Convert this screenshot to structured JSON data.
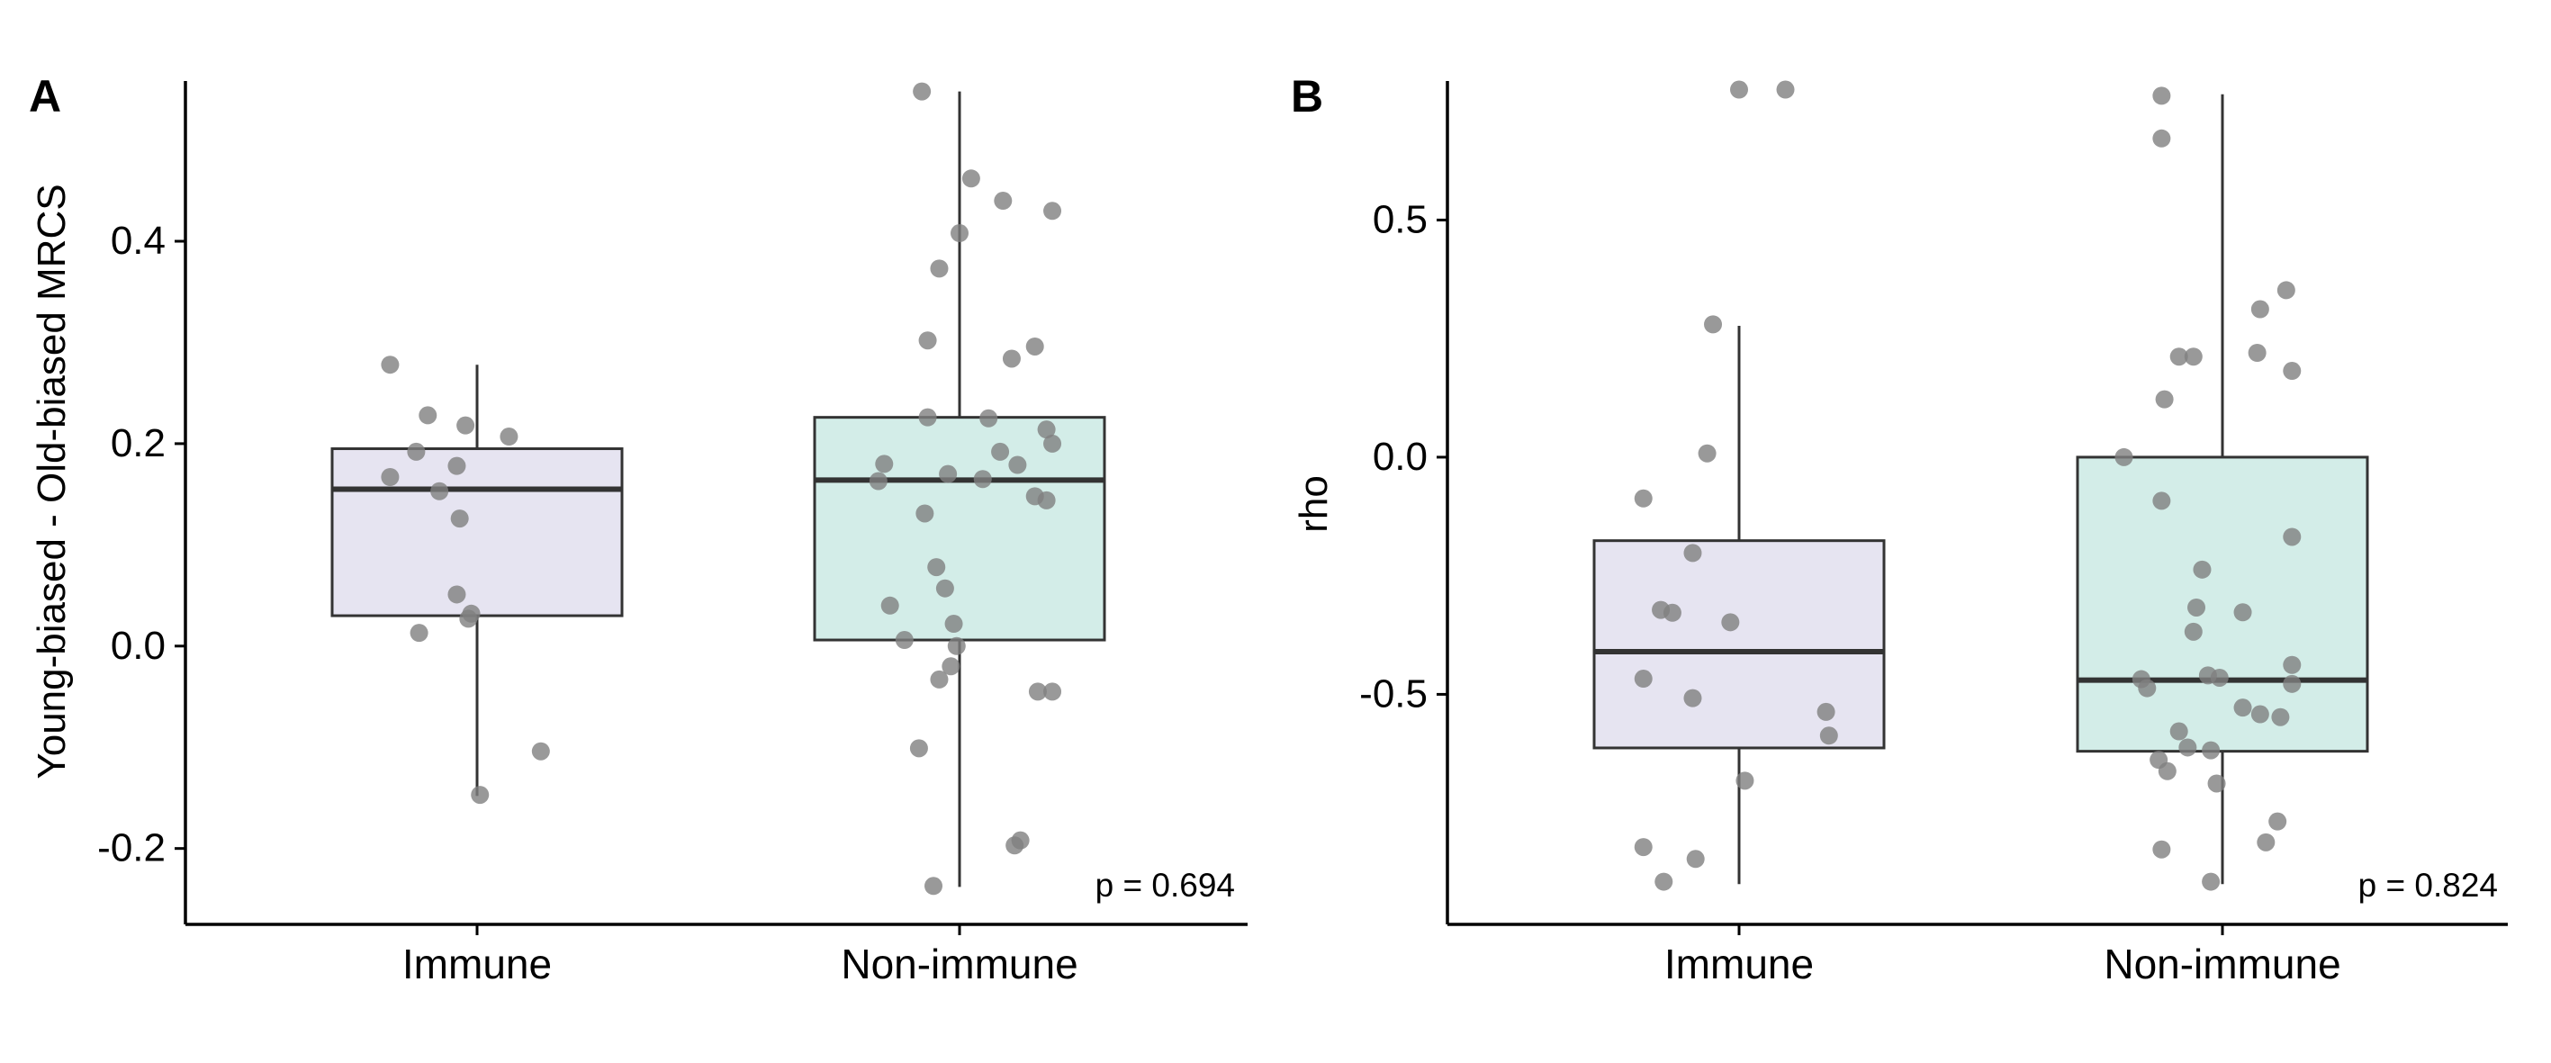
{
  "chart_data": [
    {
      "type": "box",
      "panel_label": "A",
      "ylabel": "Young-biased - Old-biased MRCS",
      "xlabel": "",
      "categories": [
        "Immune",
        "Non-immune"
      ],
      "yticks": [
        -0.2,
        0.0,
        0.2,
        0.4
      ],
      "ytick_labels": [
        "-0.2",
        "0.0",
        "0.2",
        "0.4"
      ],
      "ylim": [
        -0.275,
        0.585
      ],
      "annotation": "p = 0.694",
      "boxes": [
        {
          "category": "Immune",
          "fill": "#e6e4f1",
          "q1": 0.03,
          "median": 0.155,
          "q3": 0.195,
          "whisker_low": -0.148,
          "whisker_high": 0.278
        },
        {
          "category": "Non-immune",
          "fill": "#d3ede8",
          "q1": 0.006,
          "median": 0.164,
          "q3": 0.226,
          "whisker_low": -0.238,
          "whisker_high": 0.548
        }
      ],
      "points": [
        {
          "category": "Immune",
          "jitter": -0.3,
          "y": 0.278
        },
        {
          "category": "Immune",
          "jitter": -0.17,
          "y": 0.228
        },
        {
          "category": "Immune",
          "jitter": -0.04,
          "y": 0.218
        },
        {
          "category": "Immune",
          "jitter": 0.11,
          "y": 0.207
        },
        {
          "category": "Immune",
          "jitter": -0.21,
          "y": 0.192
        },
        {
          "category": "Immune",
          "jitter": -0.07,
          "y": 0.178
        },
        {
          "category": "Immune",
          "jitter": -0.3,
          "y": 0.167
        },
        {
          "category": "Immune",
          "jitter": -0.13,
          "y": 0.153
        },
        {
          "category": "Immune",
          "jitter": -0.06,
          "y": 0.126
        },
        {
          "category": "Immune",
          "jitter": -0.07,
          "y": 0.051
        },
        {
          "category": "Immune",
          "jitter": -0.02,
          "y": 0.032
        },
        {
          "category": "Immune",
          "jitter": -0.03,
          "y": 0.027
        },
        {
          "category": "Immune",
          "jitter": -0.2,
          "y": 0.013
        },
        {
          "category": "Immune",
          "jitter": 0.22,
          "y": -0.104
        },
        {
          "category": "Immune",
          "jitter": 0.01,
          "y": -0.147
        },
        {
          "category": "Non-immune",
          "jitter": -0.13,
          "y": 0.548
        },
        {
          "category": "Non-immune",
          "jitter": 0.04,
          "y": 0.462
        },
        {
          "category": "Non-immune",
          "jitter": 0.15,
          "y": 0.44
        },
        {
          "category": "Non-immune",
          "jitter": 0.32,
          "y": 0.43
        },
        {
          "category": "Non-immune",
          "jitter": 0.0,
          "y": 0.408
        },
        {
          "category": "Non-immune",
          "jitter": -0.07,
          "y": 0.373
        },
        {
          "category": "Non-immune",
          "jitter": -0.11,
          "y": 0.302
        },
        {
          "category": "Non-immune",
          "jitter": 0.26,
          "y": 0.296
        },
        {
          "category": "Non-immune",
          "jitter": 0.18,
          "y": 0.284
        },
        {
          "category": "Non-immune",
          "jitter": -0.11,
          "y": 0.226
        },
        {
          "category": "Non-immune",
          "jitter": 0.1,
          "y": 0.225
        },
        {
          "category": "Non-immune",
          "jitter": 0.3,
          "y": 0.214
        },
        {
          "category": "Non-immune",
          "jitter": 0.32,
          "y": 0.2
        },
        {
          "category": "Non-immune",
          "jitter": 0.14,
          "y": 0.192
        },
        {
          "category": "Non-immune",
          "jitter": -0.26,
          "y": 0.18
        },
        {
          "category": "Non-immune",
          "jitter": 0.2,
          "y": 0.179
        },
        {
          "category": "Non-immune",
          "jitter": -0.04,
          "y": 0.17
        },
        {
          "category": "Non-immune",
          "jitter": 0.08,
          "y": 0.165
        },
        {
          "category": "Non-immune",
          "jitter": -0.28,
          "y": 0.163
        },
        {
          "category": "Non-immune",
          "jitter": 0.26,
          "y": 0.148
        },
        {
          "category": "Non-immune",
          "jitter": 0.3,
          "y": 0.144
        },
        {
          "category": "Non-immune",
          "jitter": -0.12,
          "y": 0.131
        },
        {
          "category": "Non-immune",
          "jitter": -0.08,
          "y": 0.078
        },
        {
          "category": "Non-immune",
          "jitter": -0.05,
          "y": 0.057
        },
        {
          "category": "Non-immune",
          "jitter": -0.24,
          "y": 0.04
        },
        {
          "category": "Non-immune",
          "jitter": -0.02,
          "y": 0.022
        },
        {
          "category": "Non-immune",
          "jitter": -0.19,
          "y": 0.006
        },
        {
          "category": "Non-immune",
          "jitter": -0.01,
          "y": 0.0
        },
        {
          "category": "Non-immune",
          "jitter": -0.03,
          "y": -0.02
        },
        {
          "category": "Non-immune",
          "jitter": -0.07,
          "y": -0.033
        },
        {
          "category": "Non-immune",
          "jitter": 0.27,
          "y": -0.045
        },
        {
          "category": "Non-immune",
          "jitter": 0.32,
          "y": -0.045
        },
        {
          "category": "Non-immune",
          "jitter": -0.14,
          "y": -0.101
        },
        {
          "category": "Non-immune",
          "jitter": 0.21,
          "y": -0.192
        },
        {
          "category": "Non-immune",
          "jitter": 0.19,
          "y": -0.197
        },
        {
          "category": "Non-immune",
          "jitter": -0.09,
          "y": -0.237
        }
      ]
    },
    {
      "type": "box",
      "panel_label": "B",
      "ylabel": "rho",
      "xlabel": "",
      "categories": [
        "Immune",
        "Non-immune"
      ],
      "yticks": [
        -0.5,
        0.0,
        0.5
      ],
      "ytick_labels": [
        "-0.5",
        "0.0",
        "0.5"
      ],
      "ylim": [
        -0.985,
        0.85
      ],
      "annotation": "p = 0.824",
      "boxes": [
        {
          "category": "Immune",
          "fill": "#e6e4f1",
          "q1": -0.613,
          "median": -0.41,
          "q3": -0.176,
          "whisker_low": -0.9,
          "whisker_high": 0.277
        },
        {
          "category": "Non-immune",
          "fill": "#d3ede8",
          "q1": -0.62,
          "median": -0.47,
          "q3": 0.0,
          "whisker_low": -0.9,
          "whisker_high": 0.765
        }
      ],
      "points": [
        {
          "category": "Immune",
          "jitter": 0.0,
          "y": 0.775
        },
        {
          "category": "Immune",
          "jitter": 0.16,
          "y": 0.775
        },
        {
          "category": "Immune",
          "jitter": -0.09,
          "y": 0.28
        },
        {
          "category": "Immune",
          "jitter": -0.11,
          "y": 0.008
        },
        {
          "category": "Immune",
          "jitter": -0.33,
          "y": -0.087
        },
        {
          "category": "Immune",
          "jitter": -0.16,
          "y": -0.202
        },
        {
          "category": "Immune",
          "jitter": -0.27,
          "y": -0.322
        },
        {
          "category": "Immune",
          "jitter": -0.23,
          "y": -0.328
        },
        {
          "category": "Immune",
          "jitter": -0.03,
          "y": -0.348
        },
        {
          "category": "Immune",
          "jitter": -0.33,
          "y": -0.467
        },
        {
          "category": "Immune",
          "jitter": -0.16,
          "y": -0.508
        },
        {
          "category": "Immune",
          "jitter": 0.3,
          "y": -0.537
        },
        {
          "category": "Immune",
          "jitter": 0.31,
          "y": -0.587
        },
        {
          "category": "Immune",
          "jitter": 0.02,
          "y": -0.682
        },
        {
          "category": "Immune",
          "jitter": -0.33,
          "y": -0.822
        },
        {
          "category": "Immune",
          "jitter": -0.15,
          "y": -0.847
        },
        {
          "category": "Immune",
          "jitter": -0.26,
          "y": -0.895
        },
        {
          "category": "Non-immune",
          "jitter": -0.21,
          "y": 0.762
        },
        {
          "category": "Non-immune",
          "jitter": -0.21,
          "y": 0.672
        },
        {
          "category": "Non-immune",
          "jitter": 0.22,
          "y": 0.352
        },
        {
          "category": "Non-immune",
          "jitter": 0.13,
          "y": 0.312
        },
        {
          "category": "Non-immune",
          "jitter": 0.12,
          "y": 0.22
        },
        {
          "category": "Non-immune",
          "jitter": -0.15,
          "y": 0.212
        },
        {
          "category": "Non-immune",
          "jitter": -0.1,
          "y": 0.212
        },
        {
          "category": "Non-immune",
          "jitter": 0.24,
          "y": 0.182
        },
        {
          "category": "Non-immune",
          "jitter": -0.2,
          "y": 0.122
        },
        {
          "category": "Non-immune",
          "jitter": -0.34,
          "y": 0.0
        },
        {
          "category": "Non-immune",
          "jitter": -0.21,
          "y": -0.092
        },
        {
          "category": "Non-immune",
          "jitter": 0.24,
          "y": -0.168
        },
        {
          "category": "Non-immune",
          "jitter": -0.07,
          "y": -0.237
        },
        {
          "category": "Non-immune",
          "jitter": -0.09,
          "y": -0.317
        },
        {
          "category": "Non-immune",
          "jitter": 0.07,
          "y": -0.327
        },
        {
          "category": "Non-immune",
          "jitter": -0.1,
          "y": -0.368
        },
        {
          "category": "Non-immune",
          "jitter": 0.24,
          "y": -0.438
        },
        {
          "category": "Non-immune",
          "jitter": -0.28,
          "y": -0.468
        },
        {
          "category": "Non-immune",
          "jitter": -0.05,
          "y": -0.46
        },
        {
          "category": "Non-immune",
          "jitter": -0.01,
          "y": -0.465
        },
        {
          "category": "Non-immune",
          "jitter": -0.26,
          "y": -0.487
        },
        {
          "category": "Non-immune",
          "jitter": 0.24,
          "y": -0.478
        },
        {
          "category": "Non-immune",
          "jitter": 0.07,
          "y": -0.528
        },
        {
          "category": "Non-immune",
          "jitter": 0.13,
          "y": -0.542
        },
        {
          "category": "Non-immune",
          "jitter": 0.2,
          "y": -0.548
        },
        {
          "category": "Non-immune",
          "jitter": -0.15,
          "y": -0.578
        },
        {
          "category": "Non-immune",
          "jitter": -0.12,
          "y": -0.612
        },
        {
          "category": "Non-immune",
          "jitter": -0.04,
          "y": -0.618
        },
        {
          "category": "Non-immune",
          "jitter": -0.22,
          "y": -0.638
        },
        {
          "category": "Non-immune",
          "jitter": -0.19,
          "y": -0.662
        },
        {
          "category": "Non-immune",
          "jitter": -0.02,
          "y": -0.688
        },
        {
          "category": "Non-immune",
          "jitter": 0.19,
          "y": -0.768
        },
        {
          "category": "Non-immune",
          "jitter": 0.15,
          "y": -0.812
        },
        {
          "category": "Non-immune",
          "jitter": -0.21,
          "y": -0.827
        },
        {
          "category": "Non-immune",
          "jitter": -0.04,
          "y": -0.895
        }
      ]
    }
  ],
  "style": {
    "point_color": "#7f7f7f",
    "point_alpha": 0.8,
    "line_color": "#333333",
    "axis_color": "#000000"
  }
}
